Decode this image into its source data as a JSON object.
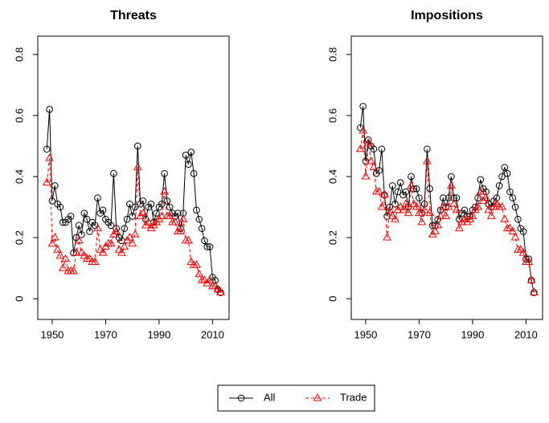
{
  "chart_data": [
    {
      "type": "line",
      "title": "Threats",
      "x": [
        1948,
        1949,
        1950,
        1951,
        1952,
        1953,
        1954,
        1955,
        1956,
        1957,
        1958,
        1959,
        1960,
        1961,
        1962,
        1963,
        1964,
        1965,
        1966,
        1967,
        1968,
        1969,
        1970,
        1971,
        1972,
        1973,
        1974,
        1975,
        1976,
        1977,
        1978,
        1979,
        1980,
        1981,
        1982,
        1983,
        1984,
        1985,
        1986,
        1987,
        1988,
        1989,
        1990,
        1991,
        1992,
        1993,
        1994,
        1995,
        1996,
        1997,
        1998,
        1999,
        2000,
        2001,
        2002,
        2003,
        2004,
        2005,
        2006,
        2007,
        2008,
        2009,
        2010,
        2011,
        2012,
        2013
      ],
      "series": [
        {
          "name": "All",
          "color": "#000000",
          "linestyle": "solid",
          "marker": "circle",
          "values": [
            0.49,
            0.62,
            0.32,
            0.37,
            0.31,
            0.3,
            0.25,
            0.25,
            0.26,
            0.27,
            0.15,
            0.2,
            0.24,
            0.21,
            0.28,
            0.26,
            0.22,
            0.25,
            0.24,
            0.33,
            0.28,
            0.29,
            0.26,
            0.25,
            0.24,
            0.41,
            0.23,
            0.2,
            0.19,
            0.23,
            0.26,
            0.31,
            0.27,
            0.3,
            0.5,
            0.31,
            0.32,
            0.26,
            0.3,
            0.31,
            0.25,
            0.28,
            0.3,
            0.31,
            0.41,
            0.32,
            0.3,
            0.28,
            0.27,
            0.28,
            0.23,
            0.28,
            0.47,
            0.44,
            0.48,
            0.41,
            0.29,
            0.26,
            0.23,
            0.19,
            0.17,
            0.17,
            0.07,
            0.06,
            0.03,
            0.02
          ]
        },
        {
          "name": "Trade",
          "color": "#ff0000",
          "linestyle": "dashed",
          "marker": "triangle",
          "values": [
            0.38,
            0.46,
            0.18,
            0.2,
            0.16,
            0.14,
            0.1,
            0.13,
            0.09,
            0.09,
            0.09,
            0.15,
            0.19,
            0.15,
            0.14,
            0.13,
            0.13,
            0.12,
            0.12,
            0.23,
            0.16,
            0.15,
            0.17,
            0.18,
            0.18,
            0.21,
            0.22,
            0.16,
            0.15,
            0.17,
            0.19,
            0.2,
            0.18,
            0.21,
            0.43,
            0.27,
            0.28,
            0.24,
            0.25,
            0.23,
            0.24,
            0.25,
            0.26,
            0.27,
            0.35,
            0.27,
            0.27,
            0.25,
            0.25,
            0.22,
            0.22,
            0.26,
            0.19,
            0.19,
            0.12,
            0.11,
            0.11,
            0.08,
            0.06,
            0.06,
            0.05,
            0.06,
            0.04,
            0.04,
            0.03,
            0.02
          ]
        }
      ],
      "xlim": [
        1944.6,
        2016.2
      ],
      "xticks": [
        1950,
        1970,
        1990,
        2010
      ],
      "ylim": [
        -0.068,
        0.86
      ],
      "yticks": [
        0,
        0.2,
        0.4,
        0.6,
        0.8
      ]
    },
    {
      "type": "line",
      "title": "Impositions",
      "x": [
        1948,
        1949,
        1950,
        1951,
        1952,
        1953,
        1954,
        1955,
        1956,
        1957,
        1958,
        1959,
        1960,
        1961,
        1962,
        1963,
        1964,
        1965,
        1966,
        1967,
        1968,
        1969,
        1970,
        1971,
        1972,
        1973,
        1974,
        1975,
        1976,
        1977,
        1978,
        1979,
        1980,
        1981,
        1982,
        1983,
        1984,
        1985,
        1986,
        1987,
        1988,
        1989,
        1990,
        1991,
        1992,
        1993,
        1994,
        1995,
        1996,
        1997,
        1998,
        1999,
        2000,
        2001,
        2002,
        2003,
        2004,
        2005,
        2006,
        2007,
        2008,
        2009,
        2010,
        2011,
        2012,
        2013
      ],
      "series": [
        {
          "name": "All",
          "color": "#000000",
          "linestyle": "solid",
          "marker": "circle",
          "values": [
            0.56,
            0.63,
            0.45,
            0.52,
            0.5,
            0.49,
            0.41,
            0.42,
            0.49,
            0.34,
            0.27,
            0.3,
            0.37,
            0.31,
            0.35,
            0.38,
            0.34,
            0.35,
            0.3,
            0.4,
            0.36,
            0.36,
            0.33,
            0.28,
            0.31,
            0.49,
            0.36,
            0.24,
            0.24,
            0.26,
            0.29,
            0.33,
            0.3,
            0.33,
            0.4,
            0.33,
            0.33,
            0.26,
            0.28,
            0.29,
            0.27,
            0.27,
            0.29,
            0.3,
            0.33,
            0.39,
            0.36,
            0.35,
            0.31,
            0.3,
            0.32,
            0.33,
            0.37,
            0.4,
            0.43,
            0.41,
            0.35,
            0.33,
            0.3,
            0.26,
            0.23,
            0.22,
            0.13,
            0.13,
            0.06,
            0.02
          ]
        },
        {
          "name": "Trade",
          "color": "#ff0000",
          "linestyle": "dashed",
          "marker": "triangle",
          "values": [
            0.49,
            0.55,
            0.4,
            0.51,
            0.45,
            0.43,
            0.35,
            0.35,
            0.3,
            0.34,
            0.2,
            0.29,
            0.27,
            0.26,
            0.29,
            0.3,
            0.29,
            0.31,
            0.28,
            0.37,
            0.31,
            0.3,
            0.28,
            0.25,
            0.29,
            0.45,
            0.28,
            0.21,
            0.22,
            0.24,
            0.27,
            0.3,
            0.27,
            0.3,
            0.37,
            0.31,
            0.29,
            0.23,
            0.25,
            0.26,
            0.25,
            0.26,
            0.27,
            0.29,
            0.3,
            0.35,
            0.32,
            0.33,
            0.29,
            0.27,
            0.3,
            0.31,
            0.3,
            0.3,
            0.26,
            0.23,
            0.23,
            0.22,
            0.2,
            0.16,
            0.16,
            0.15,
            0.12,
            0.12,
            0.06,
            0.02
          ]
        }
      ],
      "xlim": [
        1944.6,
        2016.2
      ],
      "xticks": [
        1950,
        1970,
        1990,
        2010
      ],
      "ylim": [
        -0.068,
        0.86
      ],
      "yticks": [
        0,
        0.2,
        0.4,
        0.6,
        0.8
      ]
    }
  ]
}
